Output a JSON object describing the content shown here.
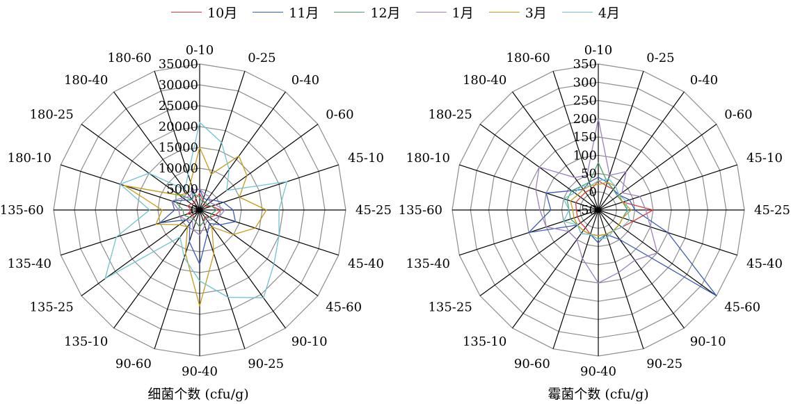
{
  "legend": [
    {
      "name": "10月",
      "color": "#e03a3e"
    },
    {
      "name": "11月",
      "color": "#3b5bb5"
    },
    {
      "name": "12月",
      "color": "#4ea072"
    },
    {
      "name": "1月",
      "color": "#9b7fc2"
    },
    {
      "name": "3月",
      "color": "#c79a16"
    },
    {
      "name": "4月",
      "color": "#6cc4d2"
    }
  ],
  "chart_data": [
    {
      "type": "radar",
      "title": "细菌个数 (cfu/g)",
      "categories": [
        "0-10",
        "0-25",
        "0-40",
        "0-60",
        "45-10",
        "45-25",
        "45-40",
        "45-60",
        "90-10",
        "90-25",
        "90-40",
        "90-60",
        "135-10",
        "135-25",
        "135-40",
        "135-60",
        "180-10",
        "180-25",
        "180-40",
        "180-60"
      ],
      "rlim": [
        0,
        35000
      ],
      "ticks": [
        "0",
        "5000",
        "10000",
        "15000",
        "20000",
        "25000",
        "30000",
        "35000"
      ],
      "grid": true,
      "legend_position": "top",
      "series": [
        {
          "name": "10月",
          "values": [
            4000,
            2500,
            2000,
            1500,
            3000,
            5000,
            4000,
            3000,
            2000,
            3000,
            4000,
            3000,
            2500,
            2000,
            3000,
            2000,
            3000,
            2500,
            2000,
            3000
          ]
        },
        {
          "name": "11月",
          "values": [
            5000,
            3000,
            3000,
            4000,
            6000,
            8000,
            9000,
            6000,
            4000,
            6000,
            13000,
            8000,
            4000,
            4000,
            10000,
            6000,
            7000,
            4000,
            3000,
            5000
          ]
        },
        {
          "name": "12月",
          "values": [
            3000,
            2000,
            2500,
            2000,
            3000,
            4000,
            3000,
            3000,
            2500,
            3000,
            4000,
            3000,
            2500,
            3000,
            4000,
            4000,
            6000,
            7000,
            3000,
            4000
          ]
        },
        {
          "name": "1月",
          "values": [
            5000,
            4000,
            4000,
            3000,
            4000,
            6000,
            5000,
            4000,
            3000,
            4000,
            6000,
            5000,
            3000,
            4000,
            5000,
            5000,
            7000,
            5000,
            4000,
            5000
          ]
        },
        {
          "name": "3月",
          "values": [
            15000,
            9000,
            16000,
            14000,
            10000,
            16000,
            14000,
            10000,
            5000,
            11000,
            23000,
            11000,
            5000,
            6000,
            11000,
            9000,
            19000,
            6000,
            5000,
            7000
          ]
        },
        {
          "name": "4月",
          "values": [
            21000,
            17000,
            12000,
            8000,
            22000,
            19000,
            20000,
            22000,
            26000,
            22000,
            17000,
            12000,
            8000,
            28000,
            21000,
            12000,
            20000,
            15000,
            6000,
            9000
          ]
        }
      ]
    },
    {
      "type": "radar",
      "title": "霉菌个数 (cfu/g)",
      "categories": [
        "0-10",
        "0-25",
        "0-40",
        "0-60",
        "45-10",
        "45-25",
        "45-40",
        "45-60",
        "90-10",
        "90-25",
        "90-40",
        "90-60",
        "135-10",
        "135-25",
        "135-40",
        "135-60",
        "180-10",
        "180-25",
        "180-40",
        "180-60"
      ],
      "rlim": [
        -50,
        350
      ],
      "ticks": [
        "-50",
        "0",
        "50",
        "100",
        "150",
        "200",
        "250",
        "300",
        "350"
      ],
      "grid": true,
      "legend_position": "top",
      "series": [
        {
          "name": "10月",
          "values": [
            30,
            20,
            20,
            15,
            20,
            100,
            50,
            30,
            20,
            20,
            20,
            20,
            10,
            10,
            10,
            10,
            15,
            10,
            10,
            10
          ]
        },
        {
          "name": "11月",
          "values": [
            40,
            30,
            20,
            20,
            40,
            50,
            150,
            350,
            50,
            20,
            40,
            20,
            30,
            20,
            150,
            80,
            100,
            40,
            20,
            30
          ]
        },
        {
          "name": "12月",
          "values": [
            80,
            30,
            20,
            15,
            20,
            30,
            20,
            20,
            20,
            20,
            30,
            20,
            20,
            20,
            30,
            30,
            40,
            40,
            30,
            30
          ]
        },
        {
          "name": "1月",
          "values": [
            200,
            50,
            80,
            30,
            70,
            80,
            100,
            150,
            120,
            130,
            150,
            90,
            50,
            50,
            100,
            110,
            130,
            150,
            60,
            50
          ]
        },
        {
          "name": "3月",
          "values": [
            20,
            30,
            30,
            20,
            20,
            40,
            20,
            20,
            20,
            20,
            20,
            20,
            20,
            20,
            20,
            20,
            30,
            20,
            20,
            20
          ]
        },
        {
          "name": "4月",
          "values": [
            30,
            40,
            30,
            20,
            30,
            30,
            40,
            30,
            20,
            30,
            30,
            20,
            30,
            20,
            50,
            30,
            50,
            30,
            30,
            20
          ]
        }
      ]
    }
  ]
}
